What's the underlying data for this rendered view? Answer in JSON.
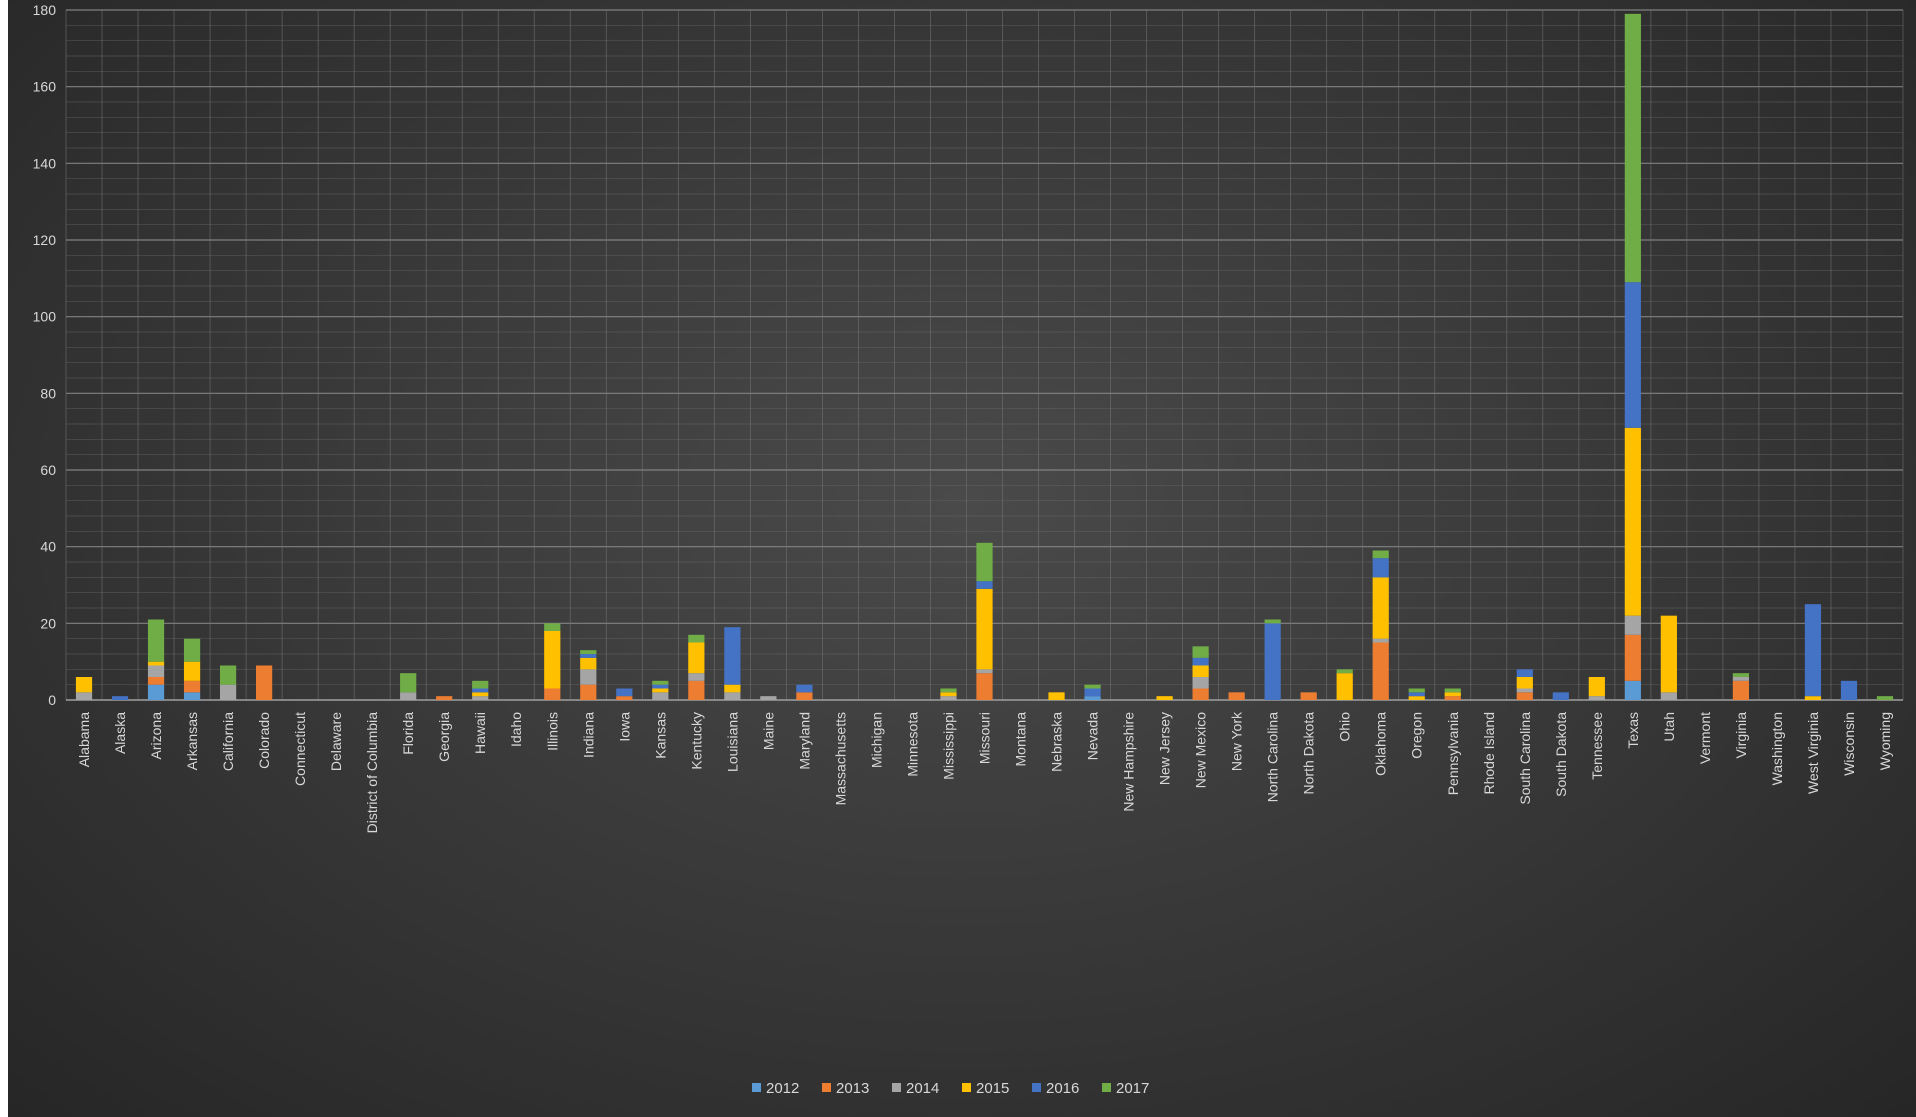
{
  "chart_data": {
    "type": "bar",
    "stacked": true,
    "title": "",
    "xlabel": "",
    "ylabel": "",
    "ylim": [
      0,
      180
    ],
    "yticks": [
      0,
      20,
      40,
      60,
      80,
      100,
      120,
      140,
      160,
      180
    ],
    "grid": true,
    "legend_position": "bottom",
    "categories": [
      "Alabama",
      "Alaska",
      "Arizona",
      "Arkansas",
      "California",
      "Colorado",
      "Connecticut",
      "Delaware",
      "District of Columbia",
      "Florida",
      "Georgia",
      "Hawaii",
      "Idaho",
      "Illinois",
      "Indiana",
      "Iowa",
      "Kansas",
      "Kentucky",
      "Louisiana",
      "Maine",
      "Maryland",
      "Massachusetts",
      "Michigan",
      "Minnesota",
      "Mississippi",
      "Missouri",
      "Montana",
      "Nebraska",
      "Nevada",
      "New Hampshire",
      "New Jersey",
      "New Mexico",
      "New York",
      "North Carolina",
      "North Dakota",
      "Ohio",
      "Oklahoma",
      "Oregon",
      "Pennsylvania",
      "Rhode Island",
      "South Carolina",
      "South Dakota",
      "Tennessee",
      "Texas",
      "Utah",
      "Vermont",
      "Virginia",
      "Washington",
      "West Virginia",
      "Wisconsin",
      "Wyoming"
    ],
    "series": [
      {
        "name": "2012",
        "color": "#5B9BD5",
        "values": [
          0,
          0,
          4,
          2,
          0,
          0,
          0,
          0,
          0,
          0,
          0,
          0,
          0,
          0,
          0,
          0,
          0,
          0,
          0,
          0,
          0,
          0,
          0,
          0,
          0,
          0,
          0,
          0,
          1,
          0,
          0,
          0,
          0,
          0,
          0,
          0,
          0,
          0,
          0,
          0,
          0,
          0,
          0,
          5,
          0,
          0,
          0,
          0,
          0,
          0,
          0
        ]
      },
      {
        "name": "2013",
        "color": "#ED7D31",
        "values": [
          0,
          0,
          2,
          3,
          0,
          9,
          0,
          0,
          0,
          0,
          1,
          0,
          0,
          3,
          4,
          1,
          0,
          5,
          0,
          0,
          2,
          0,
          0,
          0,
          0,
          7,
          0,
          0,
          0,
          0,
          0,
          3,
          2,
          0,
          2,
          0,
          15,
          0,
          1,
          0,
          2,
          0,
          0,
          12,
          0,
          0,
          5,
          0,
          0,
          0,
          0
        ]
      },
      {
        "name": "2014",
        "color": "#A5A5A5",
        "values": [
          2,
          0,
          3,
          0,
          4,
          0,
          0,
          0,
          0,
          2,
          0,
          1,
          0,
          0,
          4,
          0,
          2,
          2,
          2,
          1,
          0,
          0,
          0,
          0,
          1,
          1,
          0,
          0,
          0,
          0,
          0,
          3,
          0,
          0,
          0,
          0,
          1,
          0,
          0,
          0,
          1,
          0,
          1,
          5,
          2,
          0,
          1,
          0,
          0,
          0,
          0
        ]
      },
      {
        "name": "2015",
        "color": "#FFC000",
        "values": [
          4,
          0,
          1,
          5,
          0,
          0,
          0,
          0,
          0,
          0,
          0,
          1,
          0,
          15,
          3,
          0,
          1,
          8,
          2,
          0,
          0,
          0,
          0,
          0,
          1,
          21,
          0,
          2,
          0,
          0,
          1,
          3,
          0,
          0,
          0,
          7,
          16,
          1,
          1,
          0,
          3,
          0,
          5,
          49,
          20,
          0,
          0,
          0,
          1,
          0,
          0
        ]
      },
      {
        "name": "2016",
        "color": "#4472C4",
        "values": [
          0,
          1,
          0,
          0,
          0,
          0,
          0,
          0,
          0,
          0,
          0,
          1,
          0,
          0,
          1,
          2,
          1,
          0,
          15,
          0,
          2,
          0,
          0,
          0,
          0,
          2,
          0,
          0,
          2,
          0,
          0,
          2,
          0,
          20,
          0,
          0,
          5,
          1,
          0,
          0,
          2,
          2,
          0,
          38,
          0,
          0,
          0,
          0,
          24,
          5,
          0
        ]
      },
      {
        "name": "2017",
        "color": "#70AD47",
        "values": [
          0,
          0,
          11,
          6,
          5,
          0,
          0,
          0,
          0,
          5,
          0,
          2,
          0,
          2,
          1,
          0,
          1,
          2,
          0,
          0,
          0,
          0,
          0,
          0,
          1,
          10,
          0,
          0,
          1,
          0,
          0,
          3,
          0,
          1,
          0,
          1,
          2,
          1,
          1,
          0,
          0,
          0,
          0,
          70,
          0,
          0,
          1,
          0,
          0,
          0,
          1
        ]
      }
    ]
  }
}
